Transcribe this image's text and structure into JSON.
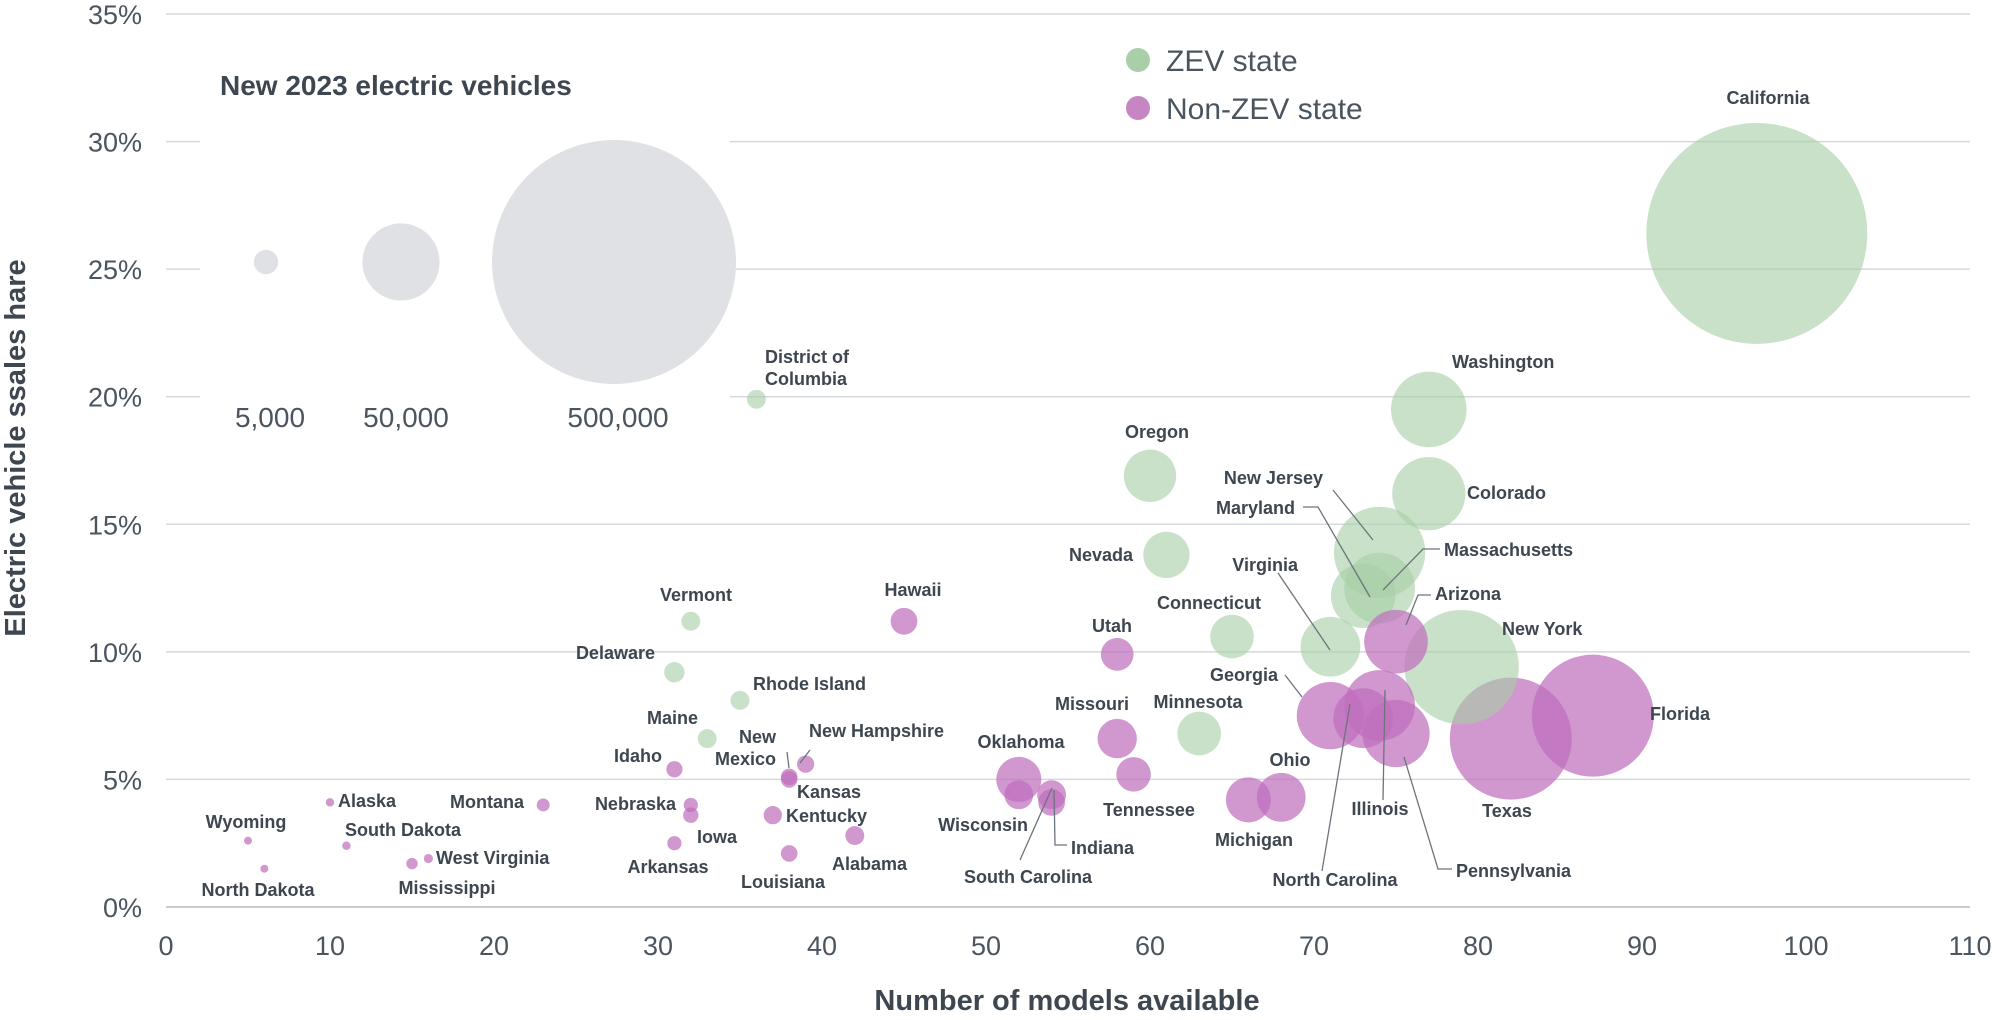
{
  "chart_data": {
    "type": "scatter",
    "xlabel": "Number of models available",
    "ylabel": "Electric vehicle ssales hare",
    "xlim": [
      0,
      110
    ],
    "ylim": [
      0,
      35
    ],
    "x_ticks": [
      0,
      10,
      20,
      30,
      40,
      50,
      60,
      70,
      80,
      90,
      100,
      110
    ],
    "y_ticks": [
      "0%",
      "5%",
      "10%",
      "15%",
      "20%",
      "25%",
      "30%",
      "35%"
    ],
    "grid": "horizontal",
    "legend": {
      "placement": "top-center",
      "entries": [
        {
          "name": "ZEV state",
          "color": "#a8cfa7"
        },
        {
          "name": "Non-ZEV state",
          "color": "#c586c3"
        }
      ]
    },
    "size_legend": {
      "title": "New 2023 electric vehicles",
      "entries": [
        {
          "label": "5,000",
          "value": 5000
        },
        {
          "label": "50,000",
          "value": 50000
        },
        {
          "label": "500,000",
          "value": 500000
        }
      ]
    },
    "colors": {
      "zev": "#a8cfa7",
      "nonzev": "#bf6fbd",
      "size_legend": "#e0e1e4",
      "grid": "#d5d8dc"
    },
    "series": [
      {
        "name": "ZEV state",
        "points": [
          {
            "state": "California",
            "x": 97,
            "y": 26.4,
            "ev": 410000
          },
          {
            "state": "Washington",
            "x": 77,
            "y": 19.5,
            "ev": 48000
          },
          {
            "state": "Colorado",
            "x": 77,
            "y": 16.2,
            "ev": 45000
          },
          {
            "state": "Oregon",
            "x": 60,
            "y": 16.9,
            "ev": 23000
          },
          {
            "state": "New Jersey",
            "x": 74,
            "y": 13.9,
            "ev": 70000
          },
          {
            "state": "Massachusetts",
            "x": 74,
            "y": 12.5,
            "ev": 42000
          },
          {
            "state": "Maryland",
            "x": 73,
            "y": 12.2,
            "ev": 35000
          },
          {
            "state": "Nevada",
            "x": 61,
            "y": 13.8,
            "ev": 18000
          },
          {
            "state": "Virginia",
            "x": 71,
            "y": 10.2,
            "ev": 30000
          },
          {
            "state": "Connecticut",
            "x": 65,
            "y": 10.6,
            "ev": 16000
          },
          {
            "state": "New York",
            "x": 79,
            "y": 9.4,
            "ev": 110000
          },
          {
            "state": "Minnesota",
            "x": 63,
            "y": 6.8,
            "ev": 16000
          },
          {
            "state": "District of Columbia",
            "x": 36,
            "y": 19.9,
            "ev": 3000
          },
          {
            "state": "Vermont",
            "x": 32,
            "y": 11.2,
            "ev": 3000
          },
          {
            "state": "Delaware",
            "x": 31,
            "y": 9.2,
            "ev": 3500
          },
          {
            "state": "Rhode Island",
            "x": 35,
            "y": 8.1,
            "ev": 3000
          },
          {
            "state": "Maine",
            "x": 33,
            "y": 6.6,
            "ev": 3000
          }
        ]
      },
      {
        "name": "Non-ZEV state",
        "points": [
          {
            "state": "Florida",
            "x": 87,
            "y": 7.5,
            "ev": 125000
          },
          {
            "state": "Texas",
            "x": 82,
            "y": 6.6,
            "ev": 125000
          },
          {
            "state": "Arizona",
            "x": 75,
            "y": 10.4,
            "ev": 34000
          },
          {
            "state": "Illinois",
            "x": 74,
            "y": 7.9,
            "ev": 42000
          },
          {
            "state": "North Carolina",
            "x": 73,
            "y": 7.4,
            "ev": 30000
          },
          {
            "state": "Pennsylvania",
            "x": 75,
            "y": 6.8,
            "ev": 38000
          },
          {
            "state": "Georgia",
            "x": 71,
            "y": 7.5,
            "ev": 38000
          },
          {
            "state": "Ohio",
            "x": 68,
            "y": 4.3,
            "ev": 20000
          },
          {
            "state": "Michigan",
            "x": 66,
            "y": 4.2,
            "ev": 17000
          },
          {
            "state": "Utah",
            "x": 58,
            "y": 9.9,
            "ev": 9000
          },
          {
            "state": "Missouri",
            "x": 58,
            "y": 6.6,
            "ev": 13000
          },
          {
            "state": "Tennessee",
            "x": 59,
            "y": 5.2,
            "ev": 10000
          },
          {
            "state": "Oklahoma",
            "x": 52,
            "y": 5.0,
            "ev": 17000
          },
          {
            "state": "Wisconsin",
            "x": 52,
            "y": 4.4,
            "ev": 7000
          },
          {
            "state": "Indiana",
            "x": 54,
            "y": 4.4,
            "ev": 7000
          },
          {
            "state": "South Carolina",
            "x": 54,
            "y": 4.1,
            "ev": 6000
          },
          {
            "state": "Hawaii",
            "x": 45,
            "y": 11.2,
            "ev": 6000
          },
          {
            "state": "New Hampshire",
            "x": 39,
            "y": 5.6,
            "ev": 2500
          },
          {
            "state": "New Mexico",
            "x": 38,
            "y": 5.1,
            "ev": 2300
          },
          {
            "state": "Kansas",
            "x": 38,
            "y": 5.0,
            "ev": 2300
          },
          {
            "state": "Kentucky",
            "x": 37,
            "y": 3.6,
            "ev": 2800
          },
          {
            "state": "Louisiana",
            "x": 38,
            "y": 2.1,
            "ev": 2300
          },
          {
            "state": "Alabama",
            "x": 42,
            "y": 2.8,
            "ev": 3000
          },
          {
            "state": "Idaho",
            "x": 31,
            "y": 5.4,
            "ev": 2200
          },
          {
            "state": "Nebraska",
            "x": 32,
            "y": 4.0,
            "ev": 1700
          },
          {
            "state": "Iowa",
            "x": 32,
            "y": 3.6,
            "ev": 2000
          },
          {
            "state": "Arkansas",
            "x": 31,
            "y": 2.5,
            "ev": 1700
          },
          {
            "state": "Montana",
            "x": 23,
            "y": 4.0,
            "ev": 1400
          },
          {
            "state": "Alaska",
            "x": 10,
            "y": 4.1,
            "ev": 600
          },
          {
            "state": "South Dakota",
            "x": 11,
            "y": 2.4,
            "ev": 600
          },
          {
            "state": "Wyoming",
            "x": 5,
            "y": 2.6,
            "ev": 300
          },
          {
            "state": "North Dakota",
            "x": 6,
            "y": 1.5,
            "ev": 300
          },
          {
            "state": "West Virginia",
            "x": 16,
            "y": 1.9,
            "ev": 700
          },
          {
            "state": "Mississippi",
            "x": 15,
            "y": 1.7,
            "ev": 1100
          }
        ]
      }
    ]
  }
}
